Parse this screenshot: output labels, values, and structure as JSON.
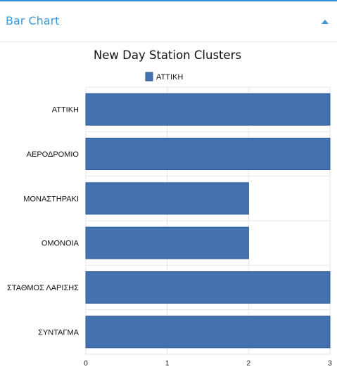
{
  "panel": {
    "title": "Bar Chart"
  },
  "colors": {
    "accent": "#3a9ae0",
    "bar_fill": "#4472b1",
    "bar_stroke": "#2d5a94",
    "grid": "#e6e6e6"
  },
  "chart_data": {
    "type": "bar",
    "orientation": "horizontal",
    "title": "New Day Station Clusters",
    "categories": [
      "ΑΤΤΙΚΗ",
      "ΑΕΡΟΔΡΟΜΙΟ",
      "ΜΟΝΑΣΤΗΡΑΚΙ",
      "ΟΜΟΝΟΙΑ",
      "ΣΤΑΘΜΟΣ ΛΑΡΙΣΗΣ",
      "ΣΥΝΤΑΓΜΑ"
    ],
    "series": [
      {
        "name": "ΑΤΤΙΚΗ",
        "values": [
          3,
          3,
          2,
          2,
          3,
          3
        ]
      }
    ],
    "xlim": [
      0,
      3
    ],
    "xticks": [
      0,
      1,
      2,
      3
    ],
    "grid": true,
    "legend_position": "top"
  }
}
